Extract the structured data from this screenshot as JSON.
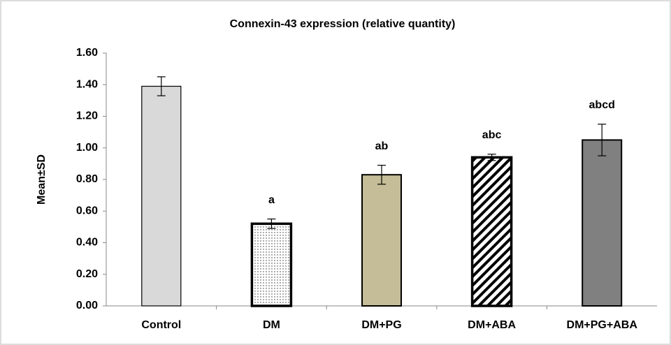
{
  "chart_data": {
    "type": "bar",
    "title": "Connexin-43 expression (relative quantity)",
    "y_label": "Mean±SD",
    "categories": [
      "Control",
      "DM",
      "DM+PG",
      "DM+ABA",
      "DM+PG+ABA"
    ],
    "values": [
      1.39,
      0.52,
      0.83,
      0.94,
      1.05
    ],
    "errors": [
      0.06,
      0.03,
      0.06,
      0.02,
      0.1
    ],
    "annotations": [
      null,
      "a",
      "ab",
      "abc",
      "abcd"
    ],
    "colors": [
      "#d9d9d9",
      "#ffffff",
      "#c4bd97",
      "#ffffff",
      "#808080"
    ],
    "patterns": [
      null,
      "dots",
      null,
      "stripes",
      null
    ],
    "ylim": [
      0,
      1.6
    ],
    "yticks": [
      {
        "value": 0,
        "label": "0.00"
      },
      {
        "value": 0.2,
        "label": "0.20"
      },
      {
        "value": 0.4,
        "label": "0.40"
      },
      {
        "value": 0.6,
        "label": "0.60"
      },
      {
        "value": 0.8,
        "label": "0.80"
      },
      {
        "value": 1.0,
        "label": "1.00"
      },
      {
        "value": 1.2,
        "label": "1.20"
      },
      {
        "value": 1.4,
        "label": "1.40"
      },
      {
        "value": 1.6,
        "label": "1.60"
      }
    ],
    "grid": false
  }
}
